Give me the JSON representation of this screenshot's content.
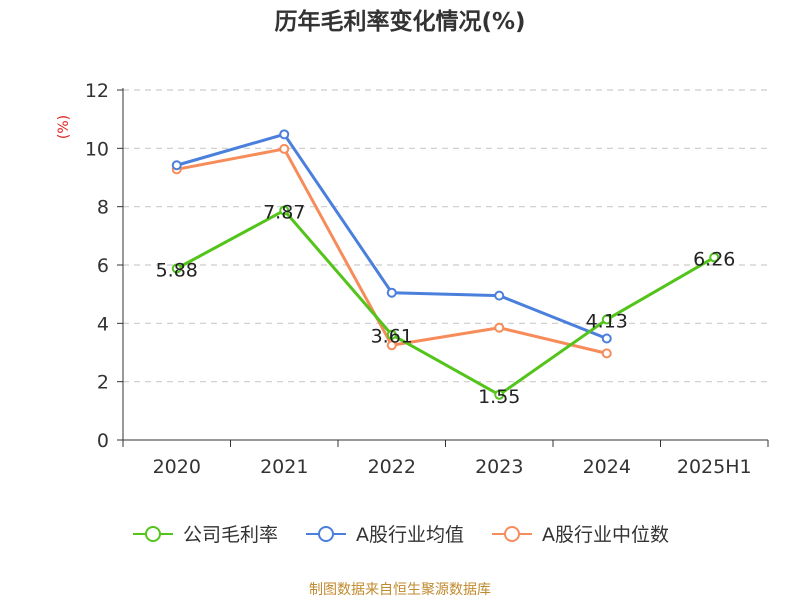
{
  "chart_data": {
    "type": "line",
    "title": "历年毛利率变化情况(%)",
    "ylabel": "(%)",
    "xlabel": "",
    "categories": [
      "2020",
      "2021",
      "2022",
      "2023",
      "2024",
      "2025H1"
    ],
    "ylim": [
      0,
      12
    ],
    "yticks": [
      0,
      2,
      4,
      6,
      8,
      10,
      12
    ],
    "grid": true,
    "legend_position": "bottom",
    "series": [
      {
        "name": "公司毛利率",
        "color": "#52c41a",
        "values": [
          5.88,
          7.87,
          3.61,
          1.55,
          4.13,
          6.26
        ],
        "labels": [
          "5.88",
          "7.87",
          "3.61",
          "1.55",
          "4.13",
          "6.26"
        ]
      },
      {
        "name": "A股行业均值",
        "color": "#4a7fdc",
        "values": [
          9.42,
          10.48,
          5.05,
          4.95,
          3.48,
          null
        ]
      },
      {
        "name": "A股行业中位数",
        "color": "#f78c5b",
        "values": [
          9.28,
          9.98,
          3.25,
          3.85,
          2.97,
          null
        ]
      }
    ]
  },
  "source": "制图数据来自恒生聚源数据库"
}
